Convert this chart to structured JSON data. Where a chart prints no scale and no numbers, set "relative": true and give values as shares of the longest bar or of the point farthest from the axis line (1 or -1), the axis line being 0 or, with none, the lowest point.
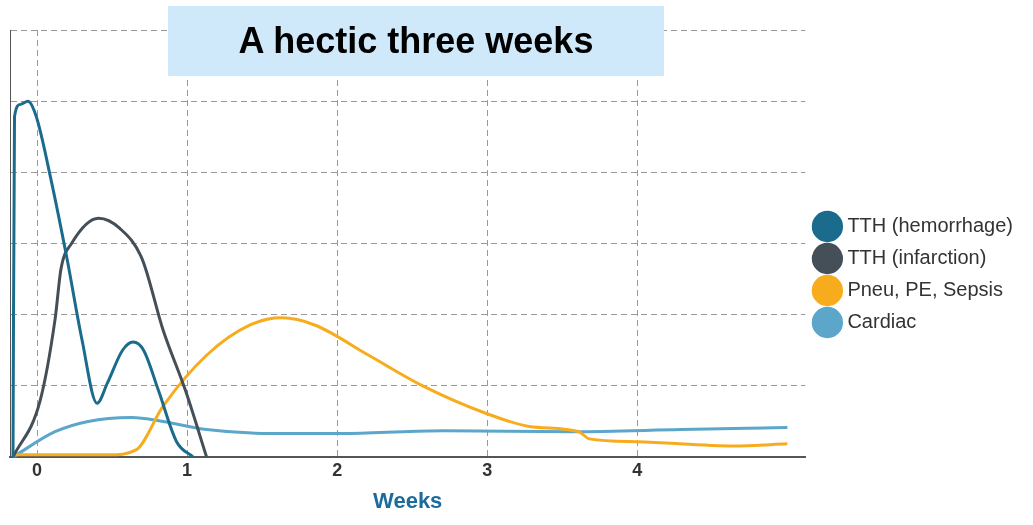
{
  "chart_data": {
    "type": "line",
    "title": "A hectic three weeks",
    "xlabel": "Weeks",
    "relative": true,
    "xlim": [
      -0.18,
      5.12
    ],
    "xticks": [
      0,
      1,
      2,
      3,
      4
    ],
    "grid": true,
    "legend": "right",
    "marker": "none",
    "line_style": "solid",
    "series": [
      {
        "name": "TTH (hemorrhage)",
        "color": "#1b6b8c",
        "x": [
          -0.16,
          -0.15,
          -0.11,
          -0.06,
          -0.005,
          0.09,
          0.2,
          0.3,
          0.4,
          0.47,
          0.57,
          0.64,
          0.71,
          0.81,
          0.93,
          1.04
        ],
        "values": [
          0,
          0.957,
          0.991,
          1,
          0.957,
          0.786,
          0.557,
          0.329,
          0.151,
          0.209,
          0.3,
          0.323,
          0.3,
          0.186,
          0.043,
          0
        ]
      },
      {
        "name": "TTH (infarction)",
        "color": "#454f58",
        "x": [
          -0.16,
          0.02,
          0.12,
          0.16,
          0.23,
          0.41,
          0.55,
          0.7,
          0.84,
          0.99,
          1.13
        ],
        "values": [
          0,
          0.157,
          0.386,
          0.529,
          0.6,
          0.671,
          0.643,
          0.557,
          0.357,
          0.186,
          0
        ]
      },
      {
        "name": "Pneu, PE, Sepsis",
        "color": "#f7ac1d",
        "x": [
          -0.16,
          0.48,
          0.66,
          0.84,
          1.13,
          1.42,
          1.63,
          1.85,
          2.21,
          2.57,
          2.99,
          3.28,
          3.61,
          3.68,
          4.0,
          4.65,
          5.0
        ],
        "values": [
          0.006,
          0.006,
          0.02,
          0.143,
          0.286,
          0.371,
          0.391,
          0.371,
          0.286,
          0.2,
          0.123,
          0.086,
          0.071,
          0.051,
          0.043,
          0.031,
          0.037
        ]
      },
      {
        "name": "Cardiac",
        "color": "#5ba6c9",
        "x": [
          -0.16,
          0.12,
          0.34,
          0.63,
          0.84,
          1.13,
          1.56,
          2.06,
          2.71,
          3.57,
          4.29,
          5.0
        ],
        "values": [
          0,
          0.071,
          0.1,
          0.111,
          0.1,
          0.077,
          0.066,
          0.066,
          0.074,
          0.071,
          0.077,
          0.083
        ]
      }
    ]
  }
}
